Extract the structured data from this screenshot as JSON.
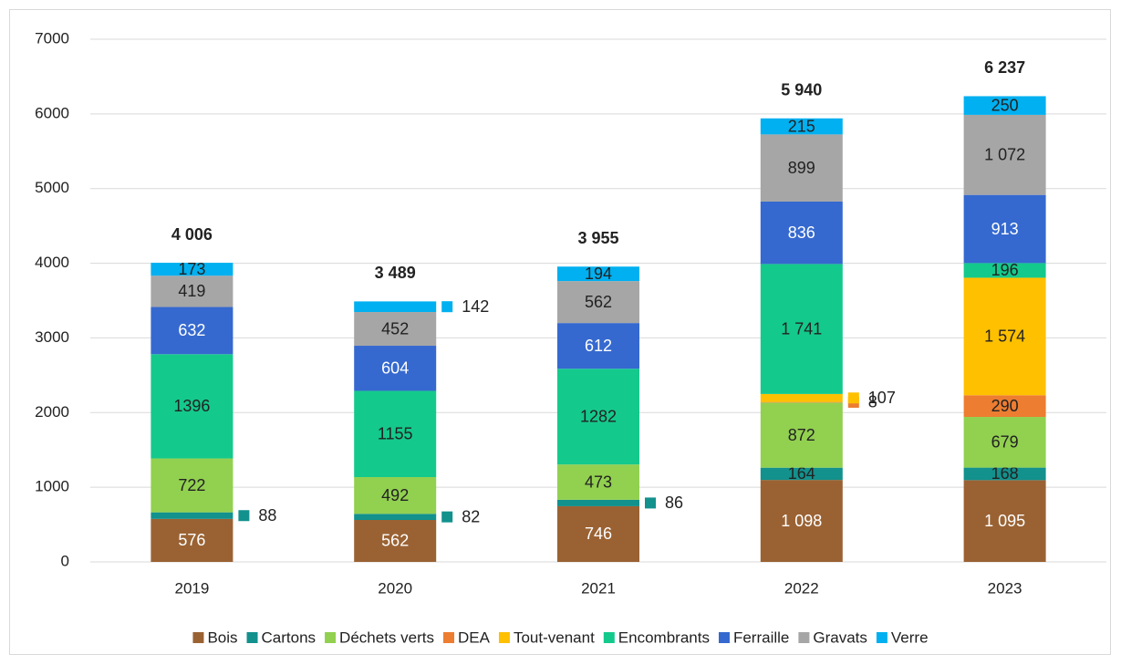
{
  "chart_data": {
    "type": "stacked_bar",
    "categories": [
      "2019",
      "2020",
      "2021",
      "2022",
      "2023"
    ],
    "ylim": [
      0,
      7000
    ],
    "yticks": [
      0,
      1000,
      2000,
      3000,
      4000,
      5000,
      6000,
      7000
    ],
    "grid": true,
    "legend": "bottom",
    "series": [
      {
        "name": "Bois",
        "color": "#9a6233",
        "label_color": "#ffffff",
        "values": [
          576,
          562,
          746,
          1098,
          1095
        ],
        "value_labels": [
          "576",
          "562",
          "746",
          "1 098",
          "1 095"
        ]
      },
      {
        "name": "Cartons",
        "color": "#12918d",
        "label_color": "#222222",
        "values": [
          88,
          82,
          86,
          164,
          168
        ],
        "value_labels": [
          "88",
          "82",
          "86",
          "164",
          "168"
        ]
      },
      {
        "name": "Déchets verts",
        "color": "#92d050",
        "label_color": "#222222",
        "values": [
          722,
          492,
          473,
          872,
          679
        ],
        "value_labels": [
          "722",
          "492",
          "473",
          "872",
          "679"
        ]
      },
      {
        "name": "DEA",
        "color": "#ed7d31",
        "label_color": "#222222",
        "values": [
          null,
          null,
          null,
          8,
          290
        ],
        "value_labels": [
          null,
          null,
          null,
          "8",
          "290"
        ]
      },
      {
        "name": "Tout-venant",
        "color": "#ffc000",
        "label_color": "#222222",
        "values": [
          null,
          null,
          null,
          107,
          1574
        ],
        "value_labels": [
          null,
          null,
          null,
          "107",
          "1 574"
        ]
      },
      {
        "name": "Encombrants",
        "color": "#14c98c",
        "label_color": "#222222",
        "values": [
          1396,
          1155,
          1282,
          1741,
          196
        ],
        "value_labels": [
          "1396",
          "1155",
          "1282",
          "1 741",
          "196"
        ]
      },
      {
        "name": "Ferraille",
        "color": "#3569cf",
        "label_color": "#ffffff",
        "values": [
          632,
          604,
          612,
          836,
          913
        ],
        "value_labels": [
          "632",
          "604",
          "612",
          "836",
          "913"
        ]
      },
      {
        "name": "Gravats",
        "color": "#a6a6a6",
        "label_color": "#222222",
        "values": [
          419,
          452,
          562,
          899,
          1072
        ],
        "value_labels": [
          "419",
          "452",
          "562",
          "899",
          "1 072"
        ]
      },
      {
        "name": "Verre",
        "color": "#00b0f0",
        "label_color": "#222222",
        "values": [
          173,
          142,
          194,
          215,
          250
        ],
        "value_labels": [
          "173",
          "142",
          "194",
          "215",
          "250"
        ]
      }
    ],
    "totals": [
      4006,
      3489,
      3955,
      5940,
      6237
    ],
    "total_labels": [
      "4 006",
      "3 489",
      "3 955",
      "5 940",
      "6 237"
    ]
  }
}
